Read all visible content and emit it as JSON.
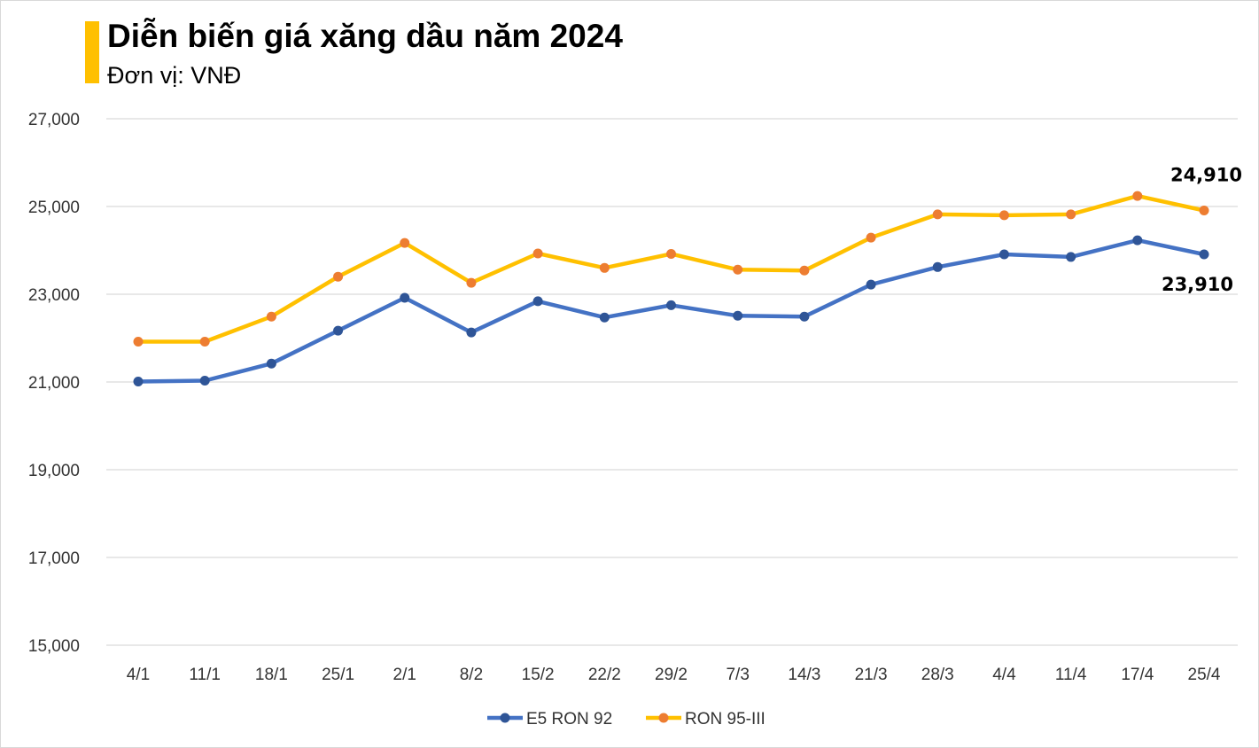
{
  "chart_data": {
    "type": "line",
    "title": "Diễn biến giá xăng dầu năm 2024",
    "subtitle": "Đơn vị: VNĐ",
    "xlabel": "",
    "ylabel": "",
    "categories": [
      "4/1",
      "11/1",
      "18/1",
      "25/1",
      "2/1",
      "8/2",
      "15/2",
      "22/2",
      "29/2",
      "7/3",
      "14/3",
      "21/3",
      "28/3",
      "4/4",
      "11/4",
      "17/4",
      "25/4"
    ],
    "ylim": [
      15000,
      27000
    ],
    "yticks": [
      15000,
      17000,
      19000,
      21000,
      23000,
      25000,
      27000
    ],
    "ytick_labels": [
      "15,000",
      "17,000",
      "19,000",
      "21,000",
      "23,000",
      "25,000",
      "27,000"
    ],
    "grid": "horizontal",
    "legend_position": "bottom",
    "series": [
      {
        "name": "E5 RON 92",
        "color": "#4472c4",
        "marker_color": "#2f5597",
        "values": [
          21010,
          21030,
          21420,
          22170,
          22920,
          22130,
          22840,
          22470,
          22750,
          22510,
          22490,
          23220,
          23620,
          23910,
          23850,
          24230,
          23910
        ],
        "end_label": "23,910"
      },
      {
        "name": "RON 95-III",
        "color": "#ffc000",
        "marker_color": "#ed7d31",
        "values": [
          21920,
          21920,
          22490,
          23400,
          24170,
          23260,
          23930,
          23600,
          23920,
          23560,
          23540,
          24290,
          24820,
          24800,
          24820,
          25240,
          24910
        ],
        "end_label": "24,910"
      }
    ]
  }
}
